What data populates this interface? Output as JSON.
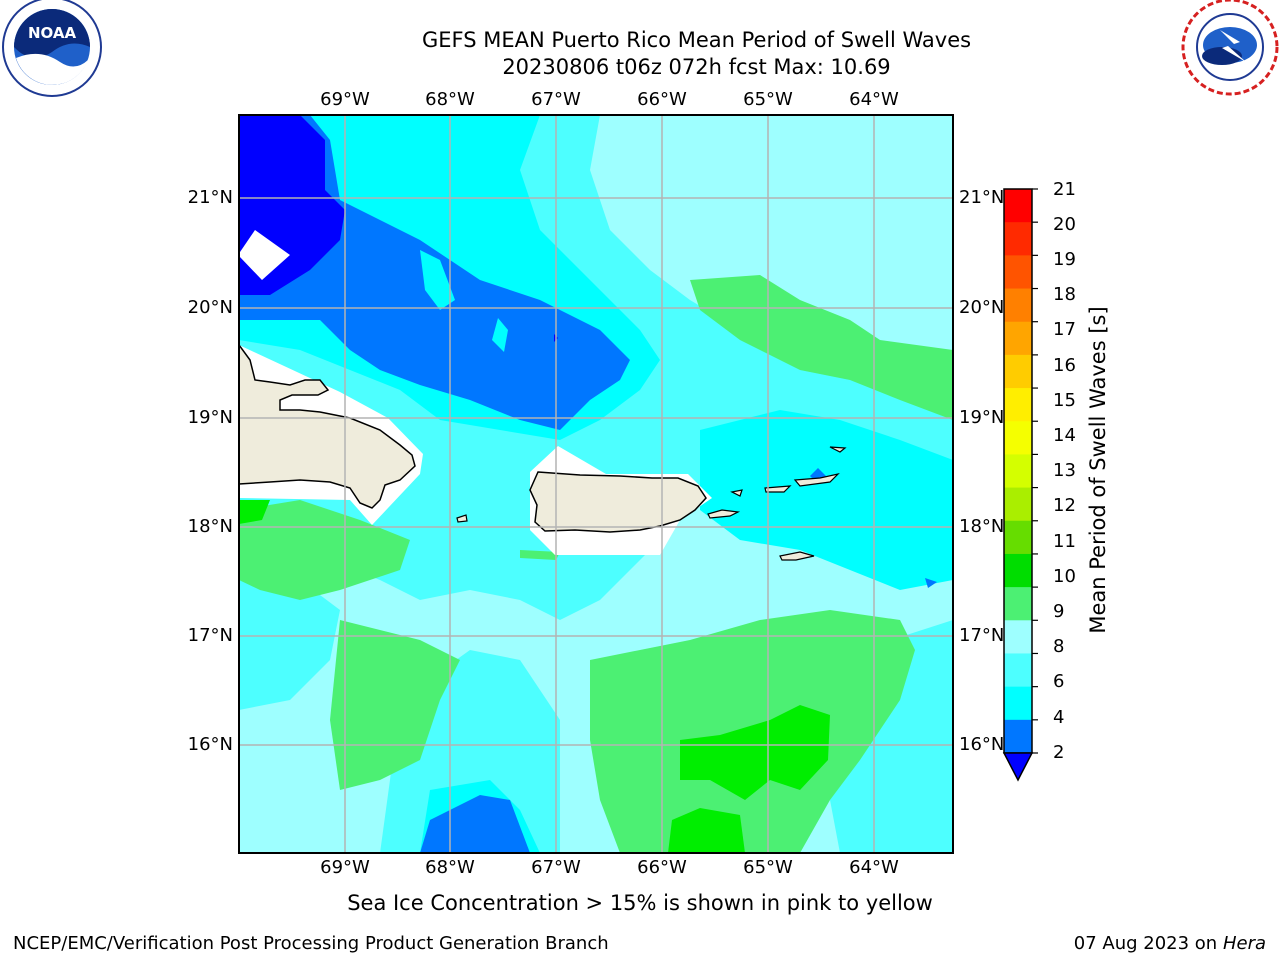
{
  "title_line1": "GEFS MEAN Puerto Rico Mean Period of Swell Waves",
  "title_line2": "20230806 t06z 072h fcst   Max: 10.69",
  "longitudes": [
    "69°W",
    "68°W",
    "67°W",
    "66°W",
    "65°W",
    "64°W"
  ],
  "latitudes": [
    "21°N",
    "20°N",
    "19°N",
    "18°N",
    "17°N",
    "16°N"
  ],
  "colorbar": {
    "label": "Mean Period of Swell Waves [s]",
    "ticks": [
      "21",
      "20",
      "19",
      "18",
      "17",
      "16",
      "15",
      "14",
      "13",
      "12",
      "11",
      "10",
      "9",
      "8",
      "6",
      "4",
      "2"
    ],
    "colors": [
      "#ff0000",
      "#ff2a00",
      "#ff5400",
      "#ff8000",
      "#ffa500",
      "#ffcc00",
      "#ffee00",
      "#f5ff00",
      "#d4ff00",
      "#aaee00",
      "#66dd00",
      "#00dd00",
      "#4cf073",
      "#9effff",
      "#4dffff",
      "#00ffff",
      "#0077ff",
      "#0000ff"
    ]
  },
  "field_colors": {
    "c2": "#0000ff",
    "c4": "#0077ff",
    "c6": "#00ffff",
    "c8": "#4dffff",
    "c9": "#9effff",
    "c10": "#4cf073",
    "c11": "#00ee00",
    "land": "#efecdc",
    "mask": "#ffffff"
  },
  "footer_note": "Sea Ice Concentration > 15% is shown in pink to yellow",
  "footer_left": "NCEP/EMC/Verification Post Processing Product Generation Branch",
  "footer_right_date": "07 Aug 2023 on",
  "footer_right_host": "Hera",
  "noaa_logo_text": "NOAA",
  "nws_logo_text": "NATIONAL WEATHER SERVICE"
}
